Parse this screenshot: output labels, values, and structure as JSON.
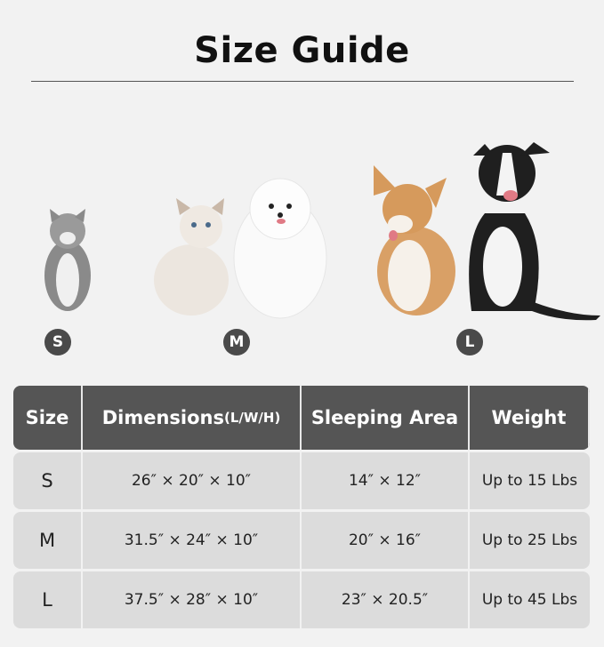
{
  "title": "Size Guide",
  "badges": [
    "S",
    "M",
    "L"
  ],
  "table": {
    "headers": {
      "size": "Size",
      "dimensions": "Dimensions",
      "dimensions_unit": "(L/W/H)",
      "sleeping_area": "Sleeping Area",
      "weight": "Weight"
    },
    "rows": [
      {
        "size": "S",
        "dimensions": "26″ × 20″ × 10″",
        "sleeping_area": "14″ × 12″",
        "weight": "Up to 15 Lbs"
      },
      {
        "size": "M",
        "dimensions": "31.5″ × 24″ × 10″",
        "sleeping_area": "20″ × 16″",
        "weight": "Up to 25 Lbs"
      },
      {
        "size": "L",
        "dimensions": "37.5″ × 28″ × 10″",
        "sleeping_area": "23″ × 20.5″",
        "weight": "Up to 45 Lbs"
      }
    ]
  },
  "colors": {
    "header_bg": "#555555",
    "row_bg": "#dcdcdc",
    "badge_bg": "#4a4a4a",
    "page_bg": "#f2f2f2"
  }
}
